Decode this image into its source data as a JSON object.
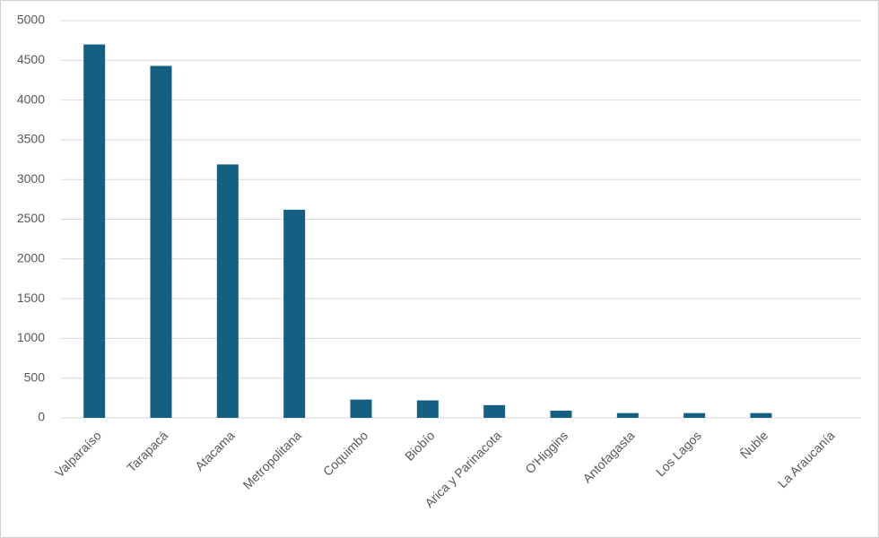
{
  "chart_data": {
    "type": "bar",
    "categories": [
      "Valparaíso",
      "Tarapacá",
      "Atacama",
      "Metropolitana",
      "Coquimbo",
      "Biobío",
      "Arica y Parinacota",
      "O'Higgins",
      "Antofagasta",
      "Los Lagos",
      "Ñuble",
      "La Araucanía"
    ],
    "values": [
      4700,
      4430,
      3190,
      2620,
      230,
      220,
      160,
      90,
      60,
      60,
      60,
      0
    ],
    "color": "#156082",
    "ylim": [
      0,
      5000
    ],
    "yticks": [
      0,
      500,
      1000,
      1500,
      2000,
      2500,
      3000,
      3500,
      4000,
      4500,
      5000
    ],
    "grid": true
  }
}
